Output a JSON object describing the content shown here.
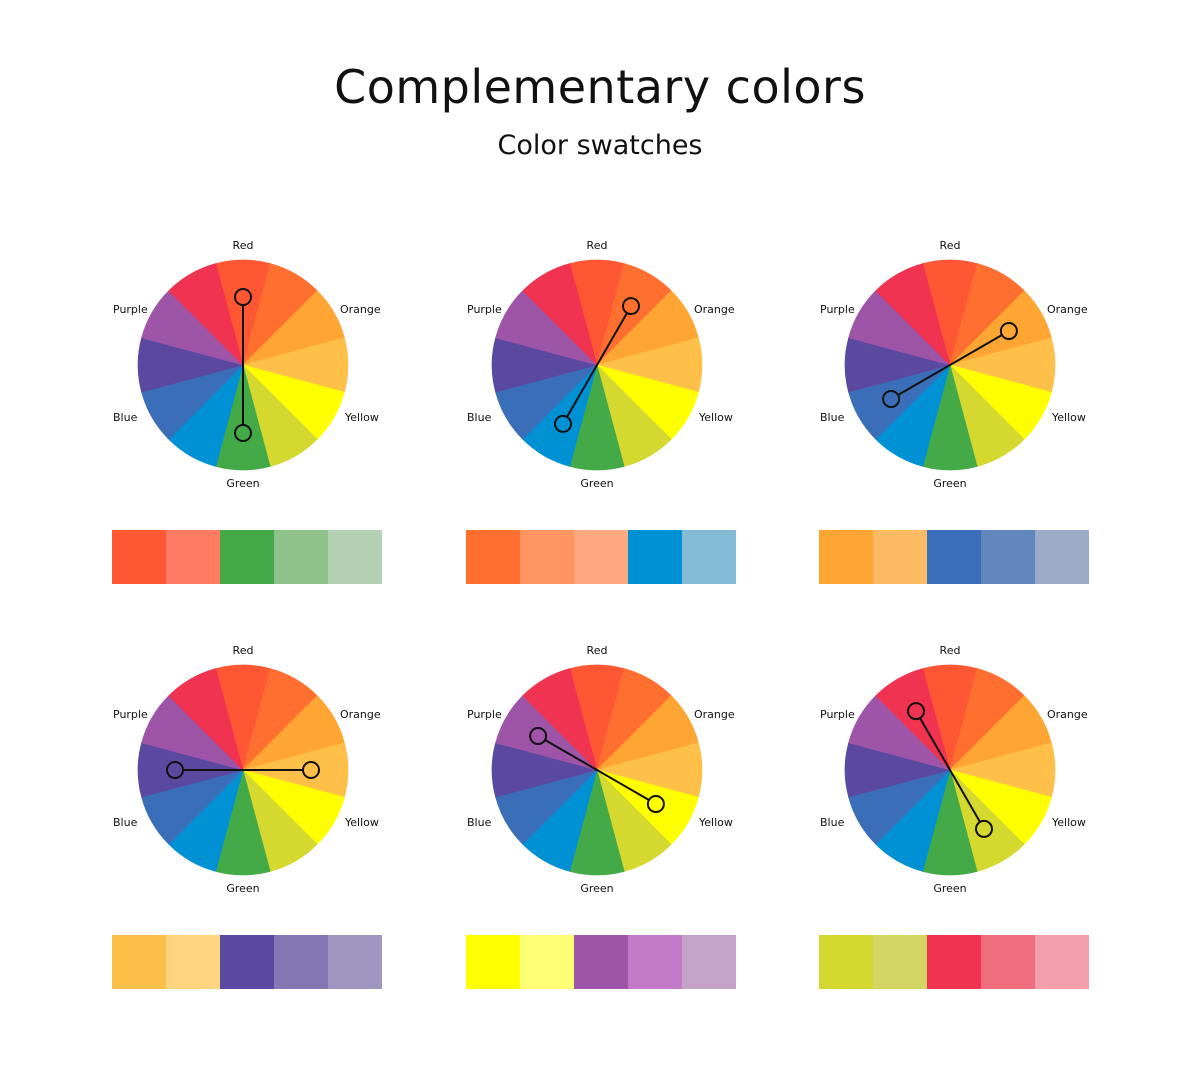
{
  "header": {
    "title": "Complementary colors",
    "subtitle": "Color swatches"
  },
  "wheel": {
    "segments": [
      "#ff5733",
      "#ff7030",
      "#ffa533",
      "#ffc04a",
      "#ffff00",
      "#d4d82f",
      "#43aa47",
      "#0091d5",
      "#3a6eb8",
      "#5b49a1",
      "#9e55a8",
      "#ef3350"
    ],
    "labels": {
      "red": "Red",
      "orange": "Orange",
      "yellow": "Yellow",
      "green": "Green",
      "blue": "Blue",
      "purple": "Purple"
    }
  },
  "examples": [
    {
      "pair": [
        0,
        6
      ],
      "swatches": [
        "#ff5733",
        "#ff7a62",
        "#43aa47",
        "#8ec28a",
        "#b4d1b4"
      ]
    },
    {
      "pair": [
        1,
        7
      ],
      "swatches": [
        "#ff7030",
        "#ff9561",
        "#ffa882",
        "#0091d5",
        "#82bbd3"
      ]
    },
    {
      "pair": [
        2,
        8
      ],
      "swatches": [
        "#ffa533",
        "#ffbb63",
        "#3a6eb8",
        "#6187bc",
        "#9dacc6"
      ]
    },
    {
      "pair": [
        3,
        9
      ],
      "swatches": [
        "#ffc04a",
        "#ffd47f",
        "#5b49a1",
        "#8577b4",
        "#9f96bf"
      ]
    },
    {
      "pair": [
        4,
        10
      ],
      "swatches": [
        "#ffff00",
        "#ffff76",
        "#9e55a8",
        "#c37bc9",
        "#c5a3c9"
      ]
    },
    {
      "pair": [
        5,
        11
      ],
      "swatches": [
        "#d4d82f",
        "#d3d665",
        "#ef3350",
        "#ee6e7d",
        "#f29fab"
      ]
    }
  ]
}
